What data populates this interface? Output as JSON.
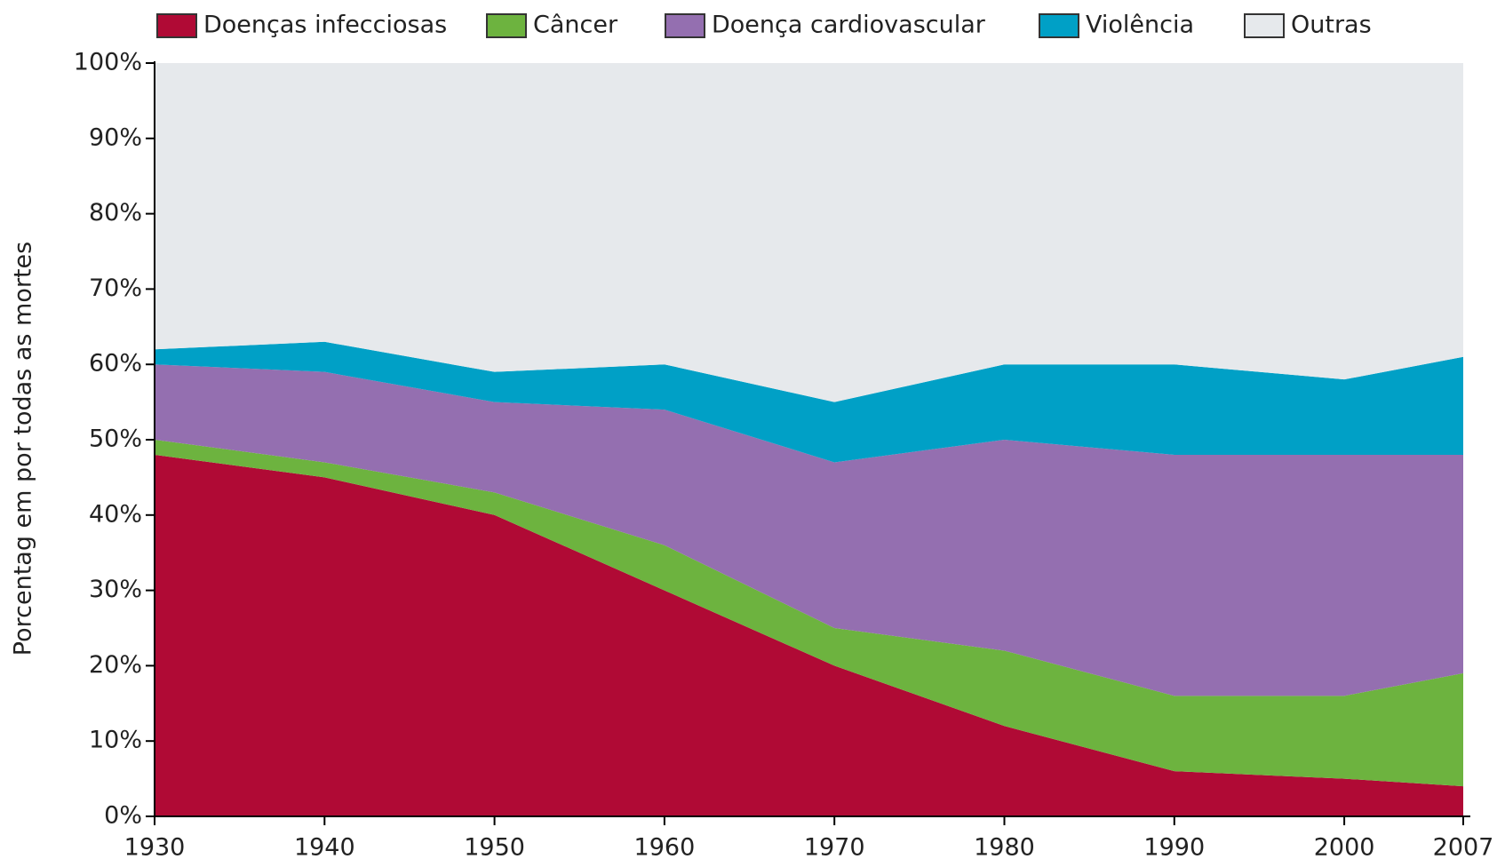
{
  "chart_data": {
    "type": "stacked_area",
    "y_label": "Porcentag em por todas as mortes",
    "x": [
      1930,
      1940,
      1950,
      1960,
      1970,
      1980,
      1990,
      2000,
      2007
    ],
    "series": [
      {
        "name": "Doenças infecciosas",
        "color": "#b00a35",
        "values": [
          48,
          45,
          40,
          30,
          20,
          12,
          6,
          5,
          4
        ]
      },
      {
        "name": "Câncer",
        "color": "#6db33f",
        "values": [
          2,
          2,
          3,
          6,
          5,
          10,
          10,
          11,
          15
        ]
      },
      {
        "name": "Doença cardiovascular",
        "color": "#946fb0",
        "values": [
          10,
          12,
          12,
          18,
          22,
          28,
          32,
          32,
          29
        ]
      },
      {
        "name": "Violência",
        "color": "#00a0c6",
        "values": [
          2,
          4,
          4,
          6,
          8,
          10,
          12,
          10,
          13
        ]
      },
      {
        "name": "Outras",
        "color": "#e6e9ec",
        "values": [
          38,
          37,
          41,
          40,
          45,
          40,
          40,
          42,
          39
        ]
      }
    ],
    "xlim": [
      1930,
      2007
    ],
    "xticks": [
      1930,
      1940,
      1950,
      1960,
      1970,
      1980,
      1990,
      2000,
      2007
    ],
    "ylim": [
      0,
      100
    ],
    "yticks": [
      {
        "value": 0,
        "label": "0%"
      },
      {
        "value": 10,
        "label": "10%"
      },
      {
        "value": 20,
        "label": "20%"
      },
      {
        "value": 30,
        "label": "30%"
      },
      {
        "value": 40,
        "label": "40%"
      },
      {
        "value": 50,
        "label": "50%"
      },
      {
        "value": 60,
        "label": "60%"
      },
      {
        "value": 70,
        "label": "70%"
      },
      {
        "value": 80,
        "label": "80%"
      },
      {
        "value": 90,
        "label": "90%"
      },
      {
        "value": 100,
        "label": "100%"
      }
    ],
    "legend": "top"
  }
}
